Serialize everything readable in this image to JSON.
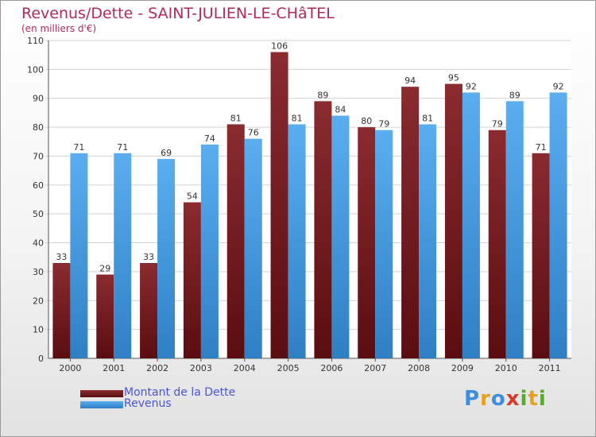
{
  "chart_data": {
    "type": "bar",
    "title": "Revenus/Dette - SAINT-JULIEN-LE-CHâTEL",
    "subtitle": "(en milliers d'€)",
    "categories": [
      "2000",
      "2001",
      "2002",
      "2003",
      "2004",
      "2005",
      "2006",
      "2007",
      "2008",
      "2009",
      "2010",
      "2011"
    ],
    "series": [
      {
        "name": "Montant de la Dette",
        "color": "#7a1f24",
        "values": [
          33,
          29,
          33,
          54,
          81,
          106,
          89,
          80,
          94,
          95,
          79,
          71
        ]
      },
      {
        "name": "Revenus",
        "color": "#4a9ee0",
        "values": [
          71,
          71,
          69,
          74,
          76,
          81,
          84,
          79,
          81,
          92,
          89,
          92
        ]
      }
    ],
    "ylim": [
      0,
      110
    ],
    "yticks": [
      0,
      10,
      20,
      30,
      40,
      50,
      60,
      70,
      80,
      90,
      100,
      110
    ],
    "grid": true,
    "legend": "bottom-left"
  },
  "logo": {
    "letters": [
      {
        "char": "P",
        "color": "#3c8fd8"
      },
      {
        "char": "r",
        "color": "#e8a020"
      },
      {
        "char": "o",
        "color": "#3c8fd8"
      },
      {
        "char": "x",
        "color": "#d8392b"
      },
      {
        "char": "i",
        "color": "#58a832"
      },
      {
        "char": "t",
        "color": "#e8a020"
      },
      {
        "char": "i",
        "color": "#58a832"
      }
    ]
  }
}
